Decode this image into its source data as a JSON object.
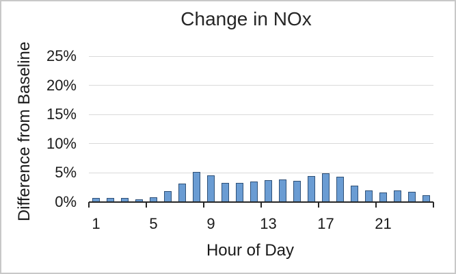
{
  "window": {
    "background": "#FFFFFF",
    "frame_border": "#C8C8C8"
  },
  "chart_data": {
    "type": "bar",
    "title": "Change in NOx",
    "xlabel": "Hour of Day",
    "ylabel": "Difference from Baseline",
    "x": [
      1,
      2,
      3,
      4,
      5,
      6,
      7,
      8,
      9,
      10,
      11,
      12,
      13,
      14,
      15,
      16,
      17,
      18,
      19,
      20,
      21,
      22,
      23,
      24
    ],
    "values": [
      0.7,
      0.7,
      0.7,
      0.5,
      0.8,
      1.9,
      3.2,
      5.2,
      4.6,
      3.3,
      3.3,
      3.5,
      3.8,
      3.9,
      3.6,
      4.5,
      4.9,
      4.4,
      2.8,
      2.0,
      1.7,
      2.0,
      1.8,
      1.2
    ],
    "unit": "%",
    "ylim": [
      0,
      25
    ],
    "yticks": [
      0,
      5,
      10,
      15,
      20,
      25
    ],
    "ytick_labels": [
      "0%",
      "5%",
      "10%",
      "15%",
      "20%",
      "25%"
    ],
    "xtick_hours": [
      1,
      5,
      9,
      13,
      17,
      21
    ],
    "xtick_labels": [
      "1",
      "5",
      "9",
      "13",
      "17",
      "21"
    ],
    "grid": "horizontal-only",
    "legend": "none",
    "colors": {
      "bar_fill": "#6A9CD3",
      "bar_border": "#2E5077",
      "gridline": "#D9D9D9",
      "axis_line": "#262626",
      "text": "#1A1A1A",
      "title_text": "#262626"
    }
  }
}
